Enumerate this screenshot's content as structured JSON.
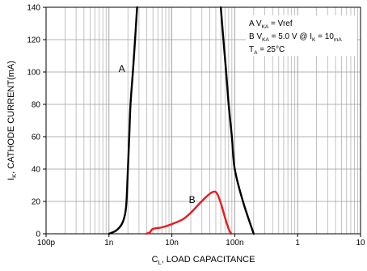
{
  "chart_data": {
    "type": "line",
    "title": "",
    "xlabel": {
      "main": "C",
      "sub": "L",
      "rest": ", LOAD CAPACITANCE"
    },
    "ylabel": {
      "main": "I",
      "sub": "K",
      "rest": ", CATHODE CURRENT(mA)"
    },
    "xscale": "log",
    "xlim": [
      1e-10,
      1e-05
    ],
    "ylim": [
      0,
      140
    ],
    "x_ticks": [
      {
        "value": 1e-10,
        "label": "100p"
      },
      {
        "value": 1e-09,
        "label": "1n"
      },
      {
        "value": 1e-08,
        "label": "10n"
      },
      {
        "value": 1e-07,
        "label": "100n"
      },
      {
        "value": 1e-06,
        "label": "1"
      },
      {
        "value": 1e-05,
        "label": "10"
      }
    ],
    "y_ticks": [
      0,
      20,
      40,
      60,
      80,
      100,
      120,
      140
    ],
    "grid": true,
    "legend": {
      "placement": "top-right",
      "lines": [
        [
          {
            "t": "A V"
          },
          {
            "t": "KA",
            "sub": true
          },
          {
            "t": " = Vref"
          }
        ],
        [
          {
            "t": "B V"
          },
          {
            "t": "KA",
            "sub": true
          },
          {
            "t": " = 5.0 V @ I"
          },
          {
            "t": "K",
            "sub": true
          },
          {
            "t": " = 10"
          },
          {
            "t": "mA",
            "sub": true
          }
        ],
        [
          {
            "t": "T"
          },
          {
            "t": "A",
            "sub": true
          },
          {
            "t": " = 25°C"
          }
        ]
      ]
    },
    "series": [
      {
        "label": "A",
        "color": "#000000",
        "left_boundary": [
          [
            1e-09,
            0
          ],
          [
            1.3e-09,
            2
          ],
          [
            1.6e-09,
            6
          ],
          [
            1.8e-09,
            12
          ],
          [
            1.9e-09,
            20
          ],
          [
            2e-09,
            40
          ],
          [
            2.1e-09,
            60
          ],
          [
            2.2e-09,
            80
          ],
          [
            2.4e-09,
            100
          ],
          [
            2.6e-09,
            120
          ],
          [
            2.8e-09,
            140
          ]
        ],
        "right_boundary": [
          [
            6e-08,
            140
          ],
          [
            6.6e-08,
            120
          ],
          [
            7.3e-08,
            100
          ],
          [
            8e-08,
            80
          ],
          [
            9e-08,
            60
          ],
          [
            1e-07,
            40
          ],
          [
            1.35e-07,
            20
          ],
          [
            2e-07,
            0
          ]
        ]
      },
      {
        "label": "B",
        "color": "#e8191e",
        "points": [
          [
            3.9e-09,
            0
          ],
          [
            4.5e-09,
            1
          ],
          [
            5e-09,
            3
          ],
          [
            7e-09,
            4
          ],
          [
            1e-08,
            6
          ],
          [
            1.5e-08,
            9
          ],
          [
            2e-08,
            13
          ],
          [
            2.8e-08,
            19
          ],
          [
            3.8e-08,
            24
          ],
          [
            4.6e-08,
            26
          ],
          [
            5.2e-08,
            25
          ],
          [
            6e-08,
            19
          ],
          [
            7e-08,
            10
          ],
          [
            8e-08,
            3
          ],
          [
            8.8e-08,
            0
          ]
        ]
      }
    ],
    "annotations": [
      {
        "text": "A",
        "x": 1.6e-09,
        "y": 100
      },
      {
        "text": "B",
        "x": 2.1e-08,
        "y": 19
      }
    ]
  }
}
